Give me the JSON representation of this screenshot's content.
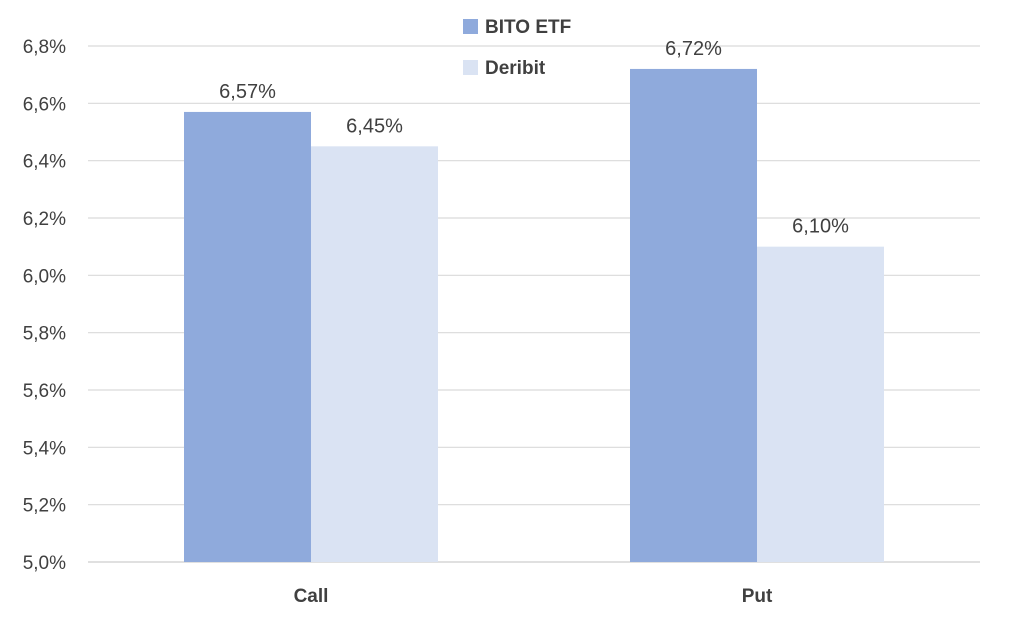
{
  "chart_data": {
    "type": "bar",
    "categories": [
      "Call",
      "Put"
    ],
    "series": [
      {
        "name": "BITO ETF",
        "values": [
          6.57,
          6.72
        ],
        "labels": [
          "6,57%",
          "6,72%"
        ],
        "color": "#8faadc"
      },
      {
        "name": "Deribit",
        "values": [
          6.45,
          6.1
        ],
        "labels": [
          "6,45%",
          "6,10%"
        ],
        "color": "#dae3f3"
      }
    ],
    "ylim": [
      5.0,
      6.8
    ],
    "yticks": [
      5.0,
      5.2,
      5.4,
      5.6,
      5.8,
      6.0,
      6.2,
      6.4,
      6.6,
      6.8
    ],
    "ytick_labels": [
      "5,0%",
      "5,2%",
      "5,4%",
      "5,6%",
      "5,8%",
      "6,0%",
      "6,2%",
      "6,4%",
      "6,6%",
      "6,8%"
    ],
    "grid": true,
    "legend_position": "top-center"
  }
}
